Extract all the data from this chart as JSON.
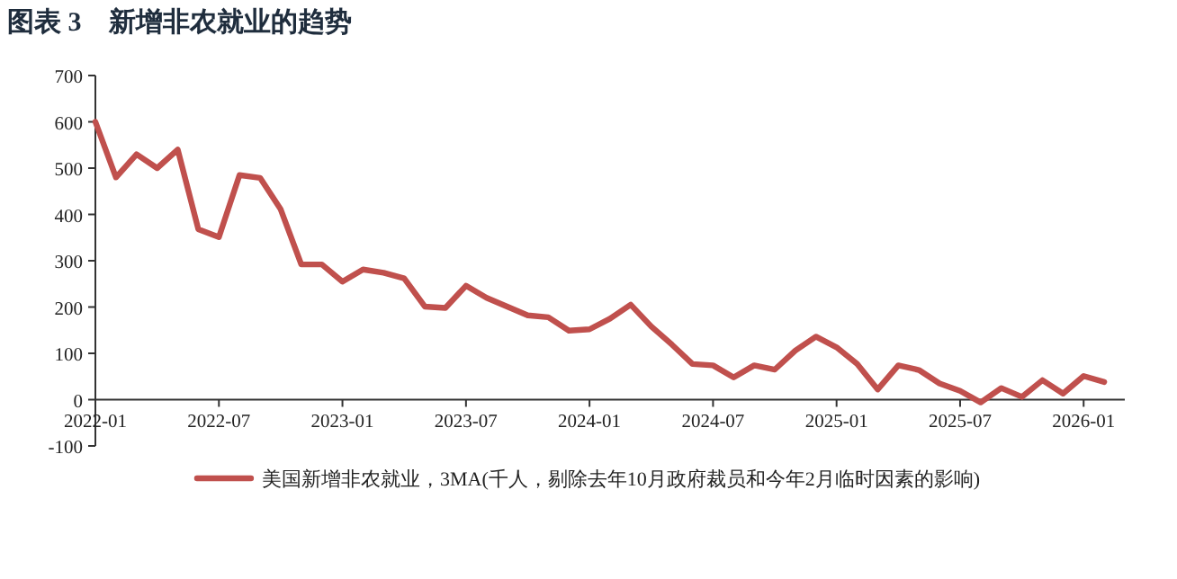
{
  "chart_data": {
    "type": "line",
    "title": "图表 3　新增非农就业的趋势",
    "x": [
      "2022-01",
      "2022-02",
      "2022-03",
      "2022-04",
      "2022-05",
      "2022-06",
      "2022-07",
      "2022-08",
      "2022-09",
      "2022-10",
      "2022-11",
      "2022-12",
      "2023-01",
      "2023-02",
      "2023-03",
      "2023-04",
      "2023-05",
      "2023-06",
      "2023-07",
      "2023-08",
      "2023-09",
      "2023-10",
      "2023-11",
      "2023-12",
      "2024-01",
      "2024-02",
      "2024-03",
      "2024-04",
      "2024-05",
      "2024-06",
      "2024-07",
      "2024-08",
      "2024-09",
      "2024-10",
      "2024-11",
      "2024-12",
      "2025-01",
      "2025-02",
      "2025-03",
      "2025-04",
      "2025-05",
      "2025-06",
      "2025-07",
      "2025-08",
      "2025-09",
      "2025-10",
      "2025-11",
      "2025-12",
      "2026-01",
      "2026-02"
    ],
    "series": [
      {
        "name": "美国新增非农就业，3MA(千人，剔除去年10月政府裁员和今年2月临时因素的影响)",
        "color": "#c0504d",
        "values": [
          600,
          480,
          530,
          500,
          540,
          368,
          351,
          485,
          479,
          411,
          292,
          292,
          255,
          281,
          274,
          262,
          201,
          198,
          246,
          220,
          201,
          182,
          178,
          149,
          152,
          175,
          205,
          158,
          119,
          77,
          74,
          48,
          74,
          65,
          106,
          136,
          113,
          77,
          22,
          74,
          64,
          35,
          19,
          -6,
          25,
          6,
          42,
          13,
          51,
          38
        ]
      }
    ],
    "xlim": [
      "2022-01",
      "2026-03"
    ],
    "xticks": [
      "2022-01",
      "2022-07",
      "2023-01",
      "2023-07",
      "2024-01",
      "2024-07",
      "2025-01",
      "2025-07",
      "2026-01"
    ],
    "ylim": [
      -100,
      700
    ],
    "yticks": [
      -100,
      0,
      100,
      200,
      300,
      400,
      500,
      600,
      700
    ],
    "legend": "bottom",
    "grid": false,
    "line_style": "solid"
  }
}
